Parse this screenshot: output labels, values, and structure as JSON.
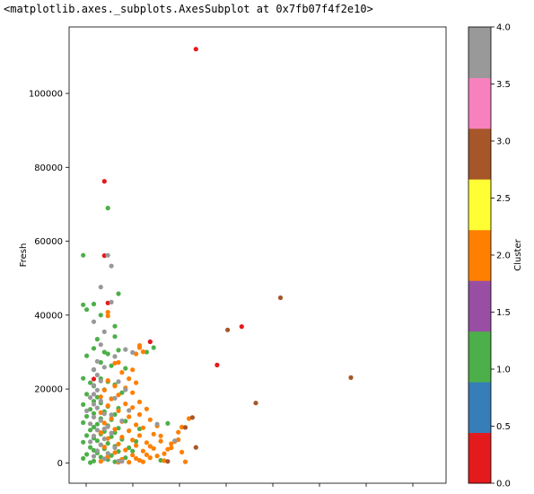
{
  "output_repr": "<matplotlib.axes._subplots.AxesSubplot at 0x7fb07f4f2e10>",
  "chart_data": {
    "type": "scatter",
    "xlabel": "",
    "ylabel": "Fresh",
    "ylim": [
      -5500,
      118000
    ],
    "xlim": [
      -0.07,
      1.0
    ],
    "x_ticks_shown_without_labels": true,
    "y_ticks": [
      0,
      20000,
      40000,
      60000,
      80000,
      100000
    ],
    "y_tick_labels": [
      "0",
      "20000",
      "40000",
      "60000",
      "80000",
      "100000"
    ],
    "grid": false,
    "colorbar": {
      "label": "Cluster",
      "range": [
        0.0,
        4.0
      ],
      "ticks": [
        0.0,
        0.5,
        1.0,
        1.5,
        2.0,
        2.5,
        3.0,
        3.5,
        4.0
      ],
      "tick_labels": [
        "0.0",
        "0.5",
        "1.0",
        "1.5",
        "2.0",
        "2.5",
        "3.0",
        "3.5",
        "4.0"
      ],
      "colormap": "Set1",
      "colors": [
        "#e41a1c",
        "#377eb8",
        "#4daf4a",
        "#984ea3",
        "#ff7f00",
        "#ffff33",
        "#a65628",
        "#f781bf",
        "#999999"
      ]
    },
    "cluster_colors": {
      "0": "#e41a1c",
      "1": "#4daf4a",
      "2": "#ff7f00",
      "3": "#a65628",
      "4": "#999999"
    },
    "series": [
      {
        "cluster": 0,
        "points": [
          [
            0.29,
            112000
          ],
          [
            0.03,
            76200
          ],
          [
            0.03,
            56100
          ],
          [
            0.04,
            43300
          ],
          [
            0.16,
            32800
          ],
          [
            0.35,
            26500
          ],
          [
            0.42,
            36900
          ],
          [
            0.0,
            22700
          ]
        ]
      },
      {
        "cluster": 1,
        "points": [
          [
            0.04,
            69000
          ],
          [
            -0.03,
            56200
          ],
          [
            0.0,
            43000
          ],
          [
            -0.03,
            42800
          ],
          [
            -0.02,
            41500
          ],
          [
            0.02,
            40000
          ],
          [
            0.07,
            45800
          ],
          [
            0.06,
            37000
          ],
          [
            0.06,
            34200
          ],
          [
            0.01,
            33500
          ],
          [
            0.0,
            31000
          ],
          [
            0.03,
            30000
          ],
          [
            0.04,
            29500
          ],
          [
            0.07,
            30500
          ],
          [
            -0.02,
            29000
          ],
          [
            0.02,
            27200
          ],
          [
            0.05,
            26300
          ],
          [
            0.09,
            25600
          ],
          [
            0.0,
            25200
          ],
          [
            -0.03,
            22900
          ],
          [
            0.02,
            22800
          ],
          [
            0.04,
            22000
          ],
          [
            0.06,
            21200
          ],
          [
            -0.01,
            21700
          ],
          [
            0.0,
            20800
          ],
          [
            0.03,
            19800
          ],
          [
            0.08,
            19000
          ],
          [
            -0.02,
            18600
          ],
          [
            0.01,
            17800
          ],
          [
            0.05,
            17400
          ],
          [
            0.0,
            16700
          ],
          [
            0.02,
            16200
          ],
          [
            -0.03,
            15800
          ],
          [
            0.04,
            15300
          ],
          [
            0.07,
            14800
          ],
          [
            -0.01,
            14500
          ],
          [
            0.03,
            13900
          ],
          [
            0.0,
            13400
          ],
          [
            0.06,
            13100
          ],
          [
            -0.02,
            12600
          ],
          [
            0.02,
            12000
          ],
          [
            0.05,
            11700
          ],
          [
            0.09,
            11300
          ],
          [
            -0.03,
            10900
          ],
          [
            0.01,
            10500
          ],
          [
            0.04,
            10100
          ],
          [
            0.0,
            9700
          ],
          [
            0.07,
            9400
          ],
          [
            -0.01,
            8900
          ],
          [
            0.03,
            8500
          ],
          [
            0.06,
            8200
          ],
          [
            0.02,
            7800
          ],
          [
            -0.02,
            7400
          ],
          [
            0.05,
            7100
          ],
          [
            0.0,
            6700
          ],
          [
            0.08,
            6400
          ],
          [
            0.01,
            6000
          ],
          [
            -0.03,
            5600
          ],
          [
            0.04,
            5300
          ],
          [
            0.02,
            4900
          ],
          [
            0.06,
            4500
          ],
          [
            -0.01,
            4200
          ],
          [
            0.03,
            3800
          ],
          [
            0.0,
            3400
          ],
          [
            0.07,
            3100
          ],
          [
            0.01,
            2700
          ],
          [
            -0.02,
            2300
          ],
          [
            0.05,
            2000
          ],
          [
            0.02,
            1600
          ],
          [
            -0.03,
            1200
          ],
          [
            0.04,
            900
          ],
          [
            0.0,
            500
          ],
          [
            0.06,
            300
          ],
          [
            -0.01,
            100
          ],
          [
            0.09,
            1400
          ],
          [
            0.11,
            3200
          ],
          [
            0.12,
            5800
          ],
          [
            0.15,
            30000
          ],
          [
            0.17,
            31200
          ],
          [
            0.13,
            9200
          ],
          [
            0.19,
            700
          ],
          [
            0.21,
            10700
          ],
          [
            0.1,
            4100
          ]
        ]
      },
      {
        "cluster": 2,
        "points": [
          [
            0.04,
            40800
          ],
          [
            0.04,
            39800
          ],
          [
            0.13,
            31800
          ],
          [
            0.13,
            31200
          ],
          [
            0.14,
            30100
          ],
          [
            0.12,
            29500
          ],
          [
            0.07,
            27200
          ],
          [
            0.06,
            27000
          ],
          [
            0.11,
            25200
          ],
          [
            0.08,
            24500
          ],
          [
            0.1,
            22800
          ],
          [
            0.04,
            22300
          ],
          [
            0.12,
            21700
          ],
          [
            0.06,
            20800
          ],
          [
            0.09,
            20300
          ],
          [
            0.03,
            19700
          ],
          [
            0.11,
            19000
          ],
          [
            0.07,
            18400
          ],
          [
            0.02,
            17900
          ],
          [
            0.05,
            17300
          ],
          [
            0.13,
            16500
          ],
          [
            0.09,
            16000
          ],
          [
            0.04,
            15500
          ],
          [
            0.11,
            15000
          ],
          [
            0.15,
            14600
          ],
          [
            0.07,
            14100
          ],
          [
            0.02,
            13600
          ],
          [
            0.13,
            13100
          ],
          [
            0.1,
            12500
          ],
          [
            0.05,
            12000
          ],
          [
            0.16,
            11700
          ],
          [
            0.08,
            11200
          ],
          [
            0.03,
            10800
          ],
          [
            0.12,
            10300
          ],
          [
            0.18,
            10000
          ],
          [
            0.14,
            9500
          ],
          [
            0.06,
            9100
          ],
          [
            0.1,
            8700
          ],
          [
            0.02,
            8200
          ],
          [
            0.17,
            7800
          ],
          [
            0.13,
            7400
          ],
          [
            0.08,
            7000
          ],
          [
            0.04,
            6600
          ],
          [
            0.11,
            6200
          ],
          [
            0.19,
            5900
          ],
          [
            0.15,
            5500
          ],
          [
            0.07,
            5100
          ],
          [
            0.12,
            4700
          ],
          [
            0.03,
            4300
          ],
          [
            0.17,
            3900
          ],
          [
            0.09,
            3500
          ],
          [
            0.14,
            3200
          ],
          [
            0.06,
            2800
          ],
          [
            0.2,
            2500
          ],
          [
            0.11,
            2100
          ],
          [
            0.04,
            1700
          ],
          [
            0.16,
            1400
          ],
          [
            0.08,
            1000
          ],
          [
            0.13,
            700
          ],
          [
            0.02,
            400
          ],
          [
            0.1,
            200
          ],
          [
            0.18,
            1900
          ],
          [
            0.21,
            3700
          ],
          [
            0.22,
            5200
          ],
          [
            0.23,
            5800
          ],
          [
            0.24,
            8300
          ],
          [
            0.25,
            9700
          ],
          [
            0.25,
            2900
          ],
          [
            0.26,
            300
          ],
          [
            0.2,
            600
          ],
          [
            0.14,
            300
          ],
          [
            0.07,
            200
          ],
          [
            0.12,
            1200
          ],
          [
            0.16,
            4500
          ],
          [
            0.19,
            7300
          ],
          [
            0.22,
            4100
          ],
          [
            0.15,
            2200
          ],
          [
            0.24,
            6300
          ],
          [
            0.27,
            12000
          ]
        ]
      },
      {
        "cluster": 3,
        "points": [
          [
            0.53,
            44700
          ],
          [
            0.38,
            36000
          ],
          [
            0.46,
            16200
          ],
          [
            0.73,
            23100
          ],
          [
            0.28,
            12300
          ],
          [
            0.29,
            4200
          ],
          [
            0.21,
            400
          ],
          [
            0.26,
            9600
          ]
        ]
      },
      {
        "cluster": 4,
        "points": [
          [
            0.04,
            56200
          ],
          [
            0.05,
            53300
          ],
          [
            0.02,
            47600
          ],
          [
            0.05,
            43500
          ],
          [
            0.0,
            38200
          ],
          [
            0.03,
            35500
          ],
          [
            0.02,
            32000
          ],
          [
            0.09,
            30700
          ],
          [
            0.11,
            29900
          ],
          [
            0.06,
            28800
          ],
          [
            0.01,
            27500
          ],
          [
            0.03,
            25900
          ],
          [
            0.0,
            25300
          ],
          [
            0.01,
            23800
          ],
          [
            0.02,
            22200
          ],
          [
            0.0,
            21000
          ],
          [
            0.01,
            19700
          ],
          [
            0.0,
            18600
          ],
          [
            -0.01,
            17700
          ],
          [
            0.02,
            16800
          ],
          [
            0.0,
            15900
          ],
          [
            0.01,
            14900
          ],
          [
            -0.02,
            14100
          ],
          [
            0.03,
            13300
          ],
          [
            0.0,
            12400
          ],
          [
            0.02,
            11500
          ],
          [
            -0.01,
            10600
          ],
          [
            0.04,
            9800
          ],
          [
            0.01,
            8900
          ],
          [
            0.05,
            8100
          ],
          [
            0.0,
            7300
          ],
          [
            0.03,
            6500
          ],
          [
            -0.01,
            5700
          ],
          [
            0.02,
            4900
          ],
          [
            0.06,
            4100
          ],
          [
            0.01,
            3300
          ],
          [
            0.04,
            2600
          ],
          [
            0.0,
            1800
          ],
          [
            0.03,
            1100
          ],
          [
            0.07,
            500
          ],
          [
            0.08,
            11400
          ],
          [
            0.07,
            22000
          ],
          [
            0.18,
            10500
          ],
          [
            0.23,
            6000
          ],
          [
            0.08,
            400
          ],
          [
            0.06,
            17500
          ],
          [
            0.09,
            19800
          ],
          [
            0.1,
            14200
          ],
          [
            0.05,
            13000
          ],
          [
            0.03,
            9200
          ]
        ]
      }
    ]
  }
}
